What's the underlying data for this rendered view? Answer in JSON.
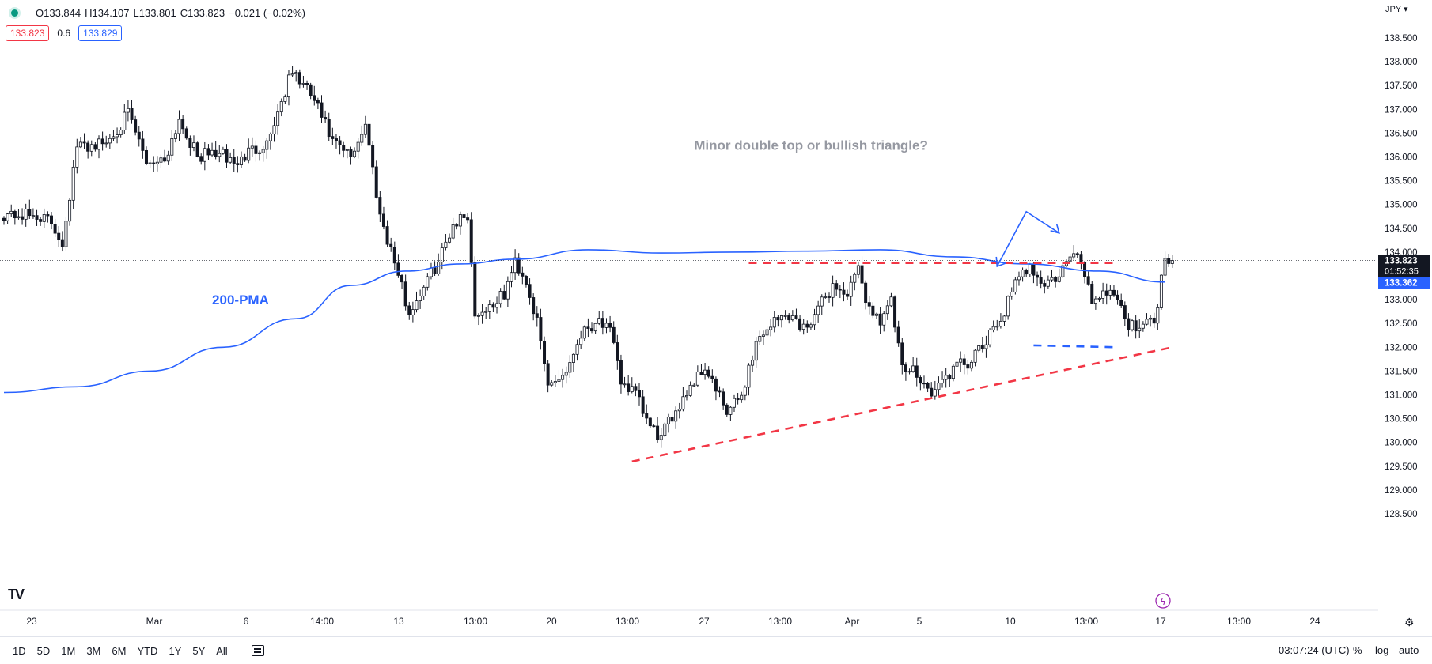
{
  "header": {
    "open": "O133.844",
    "high": "H134.107",
    "low": "L133.801",
    "close": "C133.823",
    "change": "−0.021 (−0.02%)",
    "sell_price": "133.823",
    "spread": "0.6",
    "buy_price": "133.829",
    "currency": "JPY"
  },
  "bottom_bar": {
    "ranges": [
      "1D",
      "5D",
      "1M",
      "3M",
      "6M",
      "YTD",
      "1Y",
      "5Y",
      "All"
    ],
    "time": "03:07:24 (UTC)",
    "percent": "%",
    "log": "log",
    "auto": "auto"
  },
  "colors": {
    "up": "#089981",
    "candle": "#131722",
    "ma": "#2962ff",
    "trend": "#f23645",
    "grid_text": "#131722"
  },
  "chart_data": {
    "type": "candlestick",
    "title": "",
    "xlabel": "",
    "ylabel": "",
    "ylim": [
      128.25,
      138.95
    ],
    "y_ticks": [
      128.5,
      129.0,
      129.5,
      130.0,
      130.5,
      131.0,
      131.5,
      132.0,
      132.5,
      133.0,
      133.5,
      134.0,
      134.5,
      135.0,
      135.5,
      136.0,
      136.5,
      137.0,
      137.5,
      138.0,
      138.5
    ],
    "x_labels": [
      "23",
      "Mar",
      "6",
      "14:00",
      "13",
      "13:00",
      "20",
      "13:00",
      "27",
      "13:00",
      "Apr",
      "5",
      "10",
      "13:00",
      "17",
      "13:00",
      "24"
    ],
    "anchors": [
      {
        "i": 0,
        "v": 134.8
      },
      {
        "i": 10,
        "v": 134.75
      },
      {
        "i": 13,
        "v": 134.6
      },
      {
        "i": 16,
        "v": 134.2
      },
      {
        "i": 20,
        "v": 136.2
      },
      {
        "i": 28,
        "v": 136.3
      },
      {
        "i": 34,
        "v": 136.9
      },
      {
        "i": 39,
        "v": 135.9
      },
      {
        "i": 44,
        "v": 135.95
      },
      {
        "i": 48,
        "v": 136.8
      },
      {
        "i": 53,
        "v": 136.0
      },
      {
        "i": 58,
        "v": 136.1
      },
      {
        "i": 64,
        "v": 135.85
      },
      {
        "i": 67,
        "v": 136.1
      },
      {
        "i": 72,
        "v": 136.3
      },
      {
        "i": 79,
        "v": 137.8
      },
      {
        "i": 85,
        "v": 137.2
      },
      {
        "i": 90,
        "v": 136.3
      },
      {
        "i": 95,
        "v": 136.0
      },
      {
        "i": 99,
        "v": 136.7
      },
      {
        "i": 103,
        "v": 134.8
      },
      {
        "i": 107,
        "v": 133.8
      },
      {
        "i": 111,
        "v": 132.7
      },
      {
        "i": 115,
        "v": 133.3
      },
      {
        "i": 119,
        "v": 133.8
      },
      {
        "i": 123,
        "v": 134.6
      },
      {
        "i": 127,
        "v": 134.8
      },
      {
        "i": 129,
        "v": 132.7
      },
      {
        "i": 132,
        "v": 132.8
      },
      {
        "i": 137,
        "v": 133.1
      },
      {
        "i": 140,
        "v": 133.8
      },
      {
        "i": 143,
        "v": 133.4
      },
      {
        "i": 146,
        "v": 132.5
      },
      {
        "i": 149,
        "v": 131.2
      },
      {
        "i": 154,
        "v": 131.5
      },
      {
        "i": 158,
        "v": 132.3
      },
      {
        "i": 163,
        "v": 132.6
      },
      {
        "i": 166,
        "v": 132.3
      },
      {
        "i": 169,
        "v": 131.3
      },
      {
        "i": 173,
        "v": 131.0
      },
      {
        "i": 177,
        "v": 130.3
      },
      {
        "i": 180,
        "v": 130.1
      },
      {
        "i": 184,
        "v": 130.7
      },
      {
        "i": 188,
        "v": 131.2
      },
      {
        "i": 192,
        "v": 131.6
      },
      {
        "i": 195,
        "v": 131.1
      },
      {
        "i": 198,
        "v": 130.6
      },
      {
        "i": 202,
        "v": 131.0
      },
      {
        "i": 206,
        "v": 132.1
      },
      {
        "i": 210,
        "v": 132.5
      },
      {
        "i": 215,
        "v": 132.7
      },
      {
        "i": 219,
        "v": 132.4
      },
      {
        "i": 223,
        "v": 132.8
      },
      {
        "i": 227,
        "v": 133.3
      },
      {
        "i": 231,
        "v": 133.1
      },
      {
        "i": 234,
        "v": 133.6
      },
      {
        "i": 237,
        "v": 132.8
      },
      {
        "i": 240,
        "v": 132.6
      },
      {
        "i": 243,
        "v": 132.95
      },
      {
        "i": 246,
        "v": 131.5
      },
      {
        "i": 250,
        "v": 131.5
      },
      {
        "i": 254,
        "v": 131.0
      },
      {
        "i": 257,
        "v": 131.3
      },
      {
        "i": 261,
        "v": 131.6
      },
      {
        "i": 265,
        "v": 131.7
      },
      {
        "i": 269,
        "v": 132.1
      },
      {
        "i": 273,
        "v": 132.6
      },
      {
        "i": 277,
        "v": 133.3
      },
      {
        "i": 281,
        "v": 133.75
      },
      {
        "i": 285,
        "v": 133.3
      },
      {
        "i": 289,
        "v": 133.5
      },
      {
        "i": 292,
        "v": 133.9
      },
      {
        "i": 295,
        "v": 133.85
      },
      {
        "i": 298,
        "v": 133.0
      },
      {
        "i": 302,
        "v": 133.2
      },
      {
        "i": 305,
        "v": 133.1
      },
      {
        "i": 308,
        "v": 132.4
      },
      {
        "i": 312,
        "v": 132.55
      },
      {
        "i": 315,
        "v": 132.5
      },
      {
        "i": 318,
        "v": 133.9
      },
      {
        "i": 320,
        "v": 133.823
      }
    ],
    "ma_200": {
      "name": "200-PMA",
      "points": [
        [
          0,
          131.05
        ],
        [
          20,
          131.17
        ],
        [
          40,
          131.5
        ],
        [
          60,
          132.0
        ],
        [
          80,
          132.6
        ],
        [
          95,
          133.3
        ],
        [
          110,
          133.6
        ],
        [
          125,
          133.75
        ],
        [
          140,
          133.85
        ],
        [
          160,
          134.05
        ],
        [
          180,
          133.98
        ],
        [
          200,
          134.0
        ],
        [
          220,
          134.02
        ],
        [
          240,
          134.05
        ],
        [
          260,
          133.9
        ],
        [
          280,
          133.75
        ],
        [
          300,
          133.6
        ],
        [
          318,
          133.37
        ]
      ]
    },
    "annotations": [
      {
        "type": "text",
        "label": "Minor double top or bullish triangle?",
        "at": [
          189,
          136.15
        ]
      },
      {
        "type": "text",
        "label": "200-PMA",
        "at": [
          57,
          132.9
        ]
      },
      {
        "type": "resistance",
        "style": "dashed",
        "color": "#f23645",
        "points": [
          [
            204,
            133.77
          ],
          [
            305,
            133.77
          ]
        ]
      },
      {
        "type": "support",
        "style": "dashed",
        "color": "#2962ff",
        "points": [
          [
            282,
            132.04
          ],
          [
            305,
            132.0
          ]
        ]
      },
      {
        "type": "trendline",
        "style": "dashed",
        "color": "#f23645",
        "points": [
          [
            172,
            129.6
          ],
          [
            320,
            132.0
          ]
        ]
      },
      {
        "type": "double_top_arrow",
        "color": "#2962ff",
        "points": [
          [
            272,
            133.7
          ],
          [
            280,
            134.85
          ],
          [
            289,
            134.4
          ]
        ]
      }
    ],
    "last_price": {
      "value": 133.823,
      "countdown": "01:52:35"
    },
    "ma_price": {
      "value": 133.362
    }
  }
}
